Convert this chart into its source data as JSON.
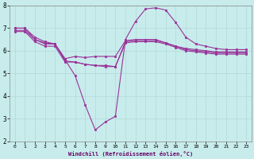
{
  "title": "Windchill (Refroidissement éolien,°C)",
  "background_color": "#c8ecec",
  "grid_color": "#b0d8d8",
  "line_color": "#993399",
  "xlim": [
    -0.5,
    23.5
  ],
  "ylim": [
    2,
    8
  ],
  "yticks": [
    2,
    3,
    4,
    5,
    6,
    7,
    8
  ],
  "xticks": [
    0,
    1,
    2,
    3,
    4,
    5,
    6,
    7,
    8,
    9,
    10,
    11,
    12,
    13,
    14,
    15,
    16,
    17,
    18,
    19,
    20,
    21,
    22,
    23
  ],
  "curves": [
    {
      "x": [
        0,
        1,
        2,
        3,
        4,
        5,
        6,
        7,
        8,
        9,
        10,
        11,
        12,
        13,
        14,
        15,
        16,
        17,
        18,
        19,
        20,
        21,
        22,
        23
      ],
      "y": [
        7.0,
        7.0,
        6.6,
        6.4,
        6.3,
        5.6,
        4.9,
        3.6,
        2.5,
        2.85,
        3.1,
        6.5,
        7.3,
        7.85,
        7.9,
        7.8,
        7.25,
        6.6,
        6.3,
        6.2,
        6.1,
        6.05,
        6.05,
        6.05
      ]
    },
    {
      "x": [
        0,
        1,
        2,
        3,
        4,
        5,
        6,
        7,
        8,
        9,
        10,
        11,
        12,
        13,
        14,
        15,
        16,
        17,
        18,
        19,
        20,
        21,
        22,
        23
      ],
      "y": [
        6.9,
        6.9,
        6.5,
        6.35,
        6.3,
        5.65,
        5.75,
        5.7,
        5.75,
        5.75,
        5.75,
        6.45,
        6.5,
        6.5,
        6.5,
        6.35,
        6.2,
        6.1,
        6.05,
        6.0,
        5.95,
        5.95,
        5.95,
        5.95
      ]
    },
    {
      "x": [
        0,
        1,
        2,
        3,
        4,
        5,
        6,
        7,
        8,
        9,
        10,
        11,
        12,
        13,
        14,
        15,
        16,
        17,
        18,
        19,
        20,
        21,
        22,
        23
      ],
      "y": [
        7.0,
        7.0,
        6.5,
        6.3,
        6.3,
        5.55,
        5.5,
        5.4,
        5.35,
        5.35,
        5.3,
        6.4,
        6.45,
        6.45,
        6.45,
        6.35,
        6.2,
        6.05,
        6.0,
        5.95,
        5.9,
        5.9,
        5.9,
        5.9
      ]
    },
    {
      "x": [
        0,
        1,
        2,
        3,
        4,
        5,
        6,
        7,
        8,
        9,
        10,
        11,
        12,
        13,
        14,
        15,
        16,
        17,
        18,
        19,
        20,
        21,
        22,
        23
      ],
      "y": [
        6.85,
        6.85,
        6.4,
        6.2,
        6.2,
        5.5,
        5.5,
        5.4,
        5.35,
        5.3,
        5.3,
        6.35,
        6.4,
        6.4,
        6.4,
        6.3,
        6.15,
        6.0,
        5.95,
        5.9,
        5.85,
        5.85,
        5.85,
        5.85
      ]
    }
  ]
}
